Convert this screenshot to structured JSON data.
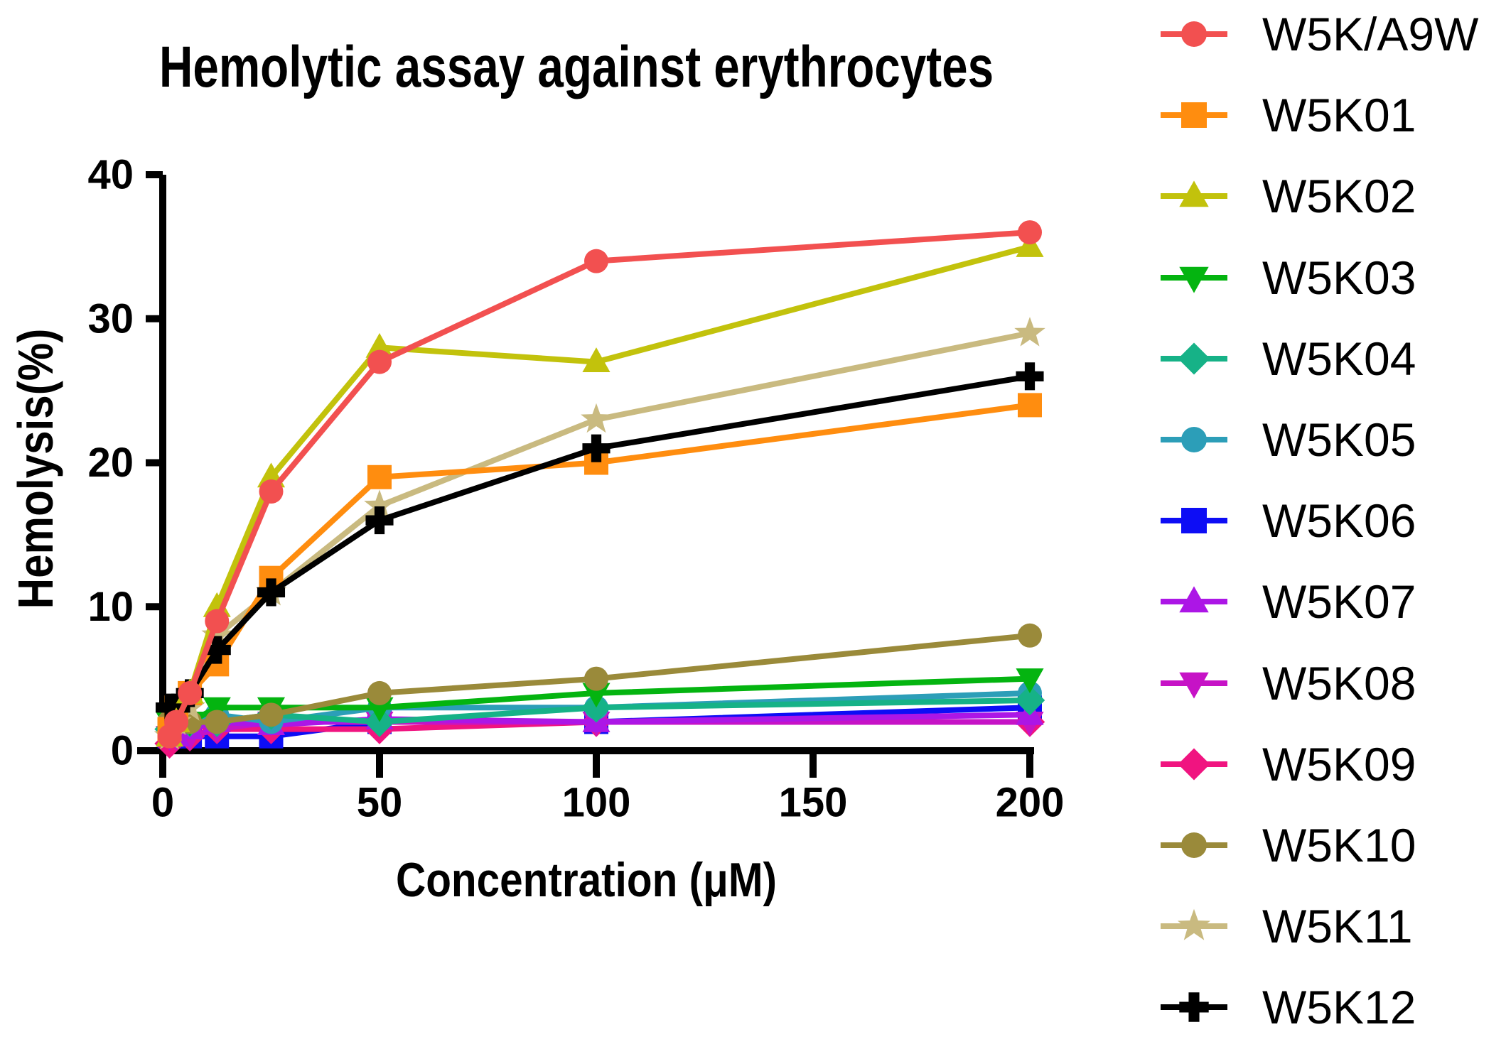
{
  "chart_data": {
    "type": "line",
    "title": "Hemolytic assay against erythrocytes",
    "xlabel": "Concentration (μM)",
    "ylabel": "Hemolysis(%)",
    "xlim": [
      0,
      200
    ],
    "ylim": [
      0,
      40
    ],
    "grid": false,
    "legend_position": "right",
    "x_ticks": [
      0,
      50,
      100,
      150,
      200
    ],
    "x_tick_labels": [
      "0",
      "50",
      "100",
      "150",
      "200"
    ],
    "y_ticks": [
      0,
      10,
      20,
      30,
      40
    ],
    "y_tick_labels": [
      "0",
      "10",
      "20",
      "30",
      "40"
    ],
    "x": [
      1.56,
      3.12,
      6.25,
      12.5,
      25,
      50,
      100,
      200
    ],
    "series": [
      {
        "name": "W5K/A9W",
        "color": "#F25050",
        "marker": "circle",
        "values": [
          1,
          2,
          4,
          9,
          18,
          27,
          34,
          36
        ]
      },
      {
        "name": "W5K01",
        "color": "#FF8D0F",
        "marker": "square",
        "values": [
          1.5,
          3,
          4,
          6,
          12,
          19,
          20,
          24
        ]
      },
      {
        "name": "W5K02",
        "color": "#C2C20C",
        "marker": "triangle-up",
        "values": [
          1,
          2,
          4,
          10,
          19,
          28,
          27,
          35
        ]
      },
      {
        "name": "W5K03",
        "color": "#04B410",
        "marker": "triangle-down",
        "values": [
          2,
          2,
          2,
          3,
          3,
          3,
          4,
          5
        ]
      },
      {
        "name": "W5K04",
        "color": "#16B287",
        "marker": "diamond",
        "values": [
          1.5,
          2,
          2,
          2,
          2.5,
          2,
          3,
          3.5
        ]
      },
      {
        "name": "W5K05",
        "color": "#2C9EB8",
        "marker": "circle",
        "values": [
          1.5,
          2,
          2,
          2.5,
          2,
          3,
          3,
          4
        ]
      },
      {
        "name": "W5K06",
        "color": "#0D0DF5",
        "marker": "square",
        "values": [
          1,
          1,
          1,
          1,
          1,
          2,
          2,
          3
        ]
      },
      {
        "name": "W5K07",
        "color": "#AC16E6",
        "marker": "triangle-up",
        "values": [
          1,
          1,
          1.5,
          2,
          1.8,
          2.2,
          2,
          2.5
        ]
      },
      {
        "name": "W5K08",
        "color": "#C613C6",
        "marker": "triangle-down",
        "values": [
          1,
          1,
          1,
          1.5,
          2,
          2,
          2,
          2
        ]
      },
      {
        "name": "W5K09",
        "color": "#F01480",
        "marker": "diamond",
        "values": [
          0.5,
          1,
          1,
          1.5,
          1.5,
          1.5,
          2,
          2
        ]
      },
      {
        "name": "W5K10",
        "color": "#9A8A3A",
        "marker": "circle",
        "values": [
          2,
          2,
          2,
          2,
          2.5,
          4,
          5,
          8
        ]
      },
      {
        "name": "W5K11",
        "color": "#C9BA80",
        "marker": "star",
        "values": [
          1,
          2,
          3,
          8,
          11,
          17,
          23,
          29
        ]
      },
      {
        "name": "W5K12",
        "color": "#000000",
        "marker": "plus",
        "values": [
          3,
          3,
          4,
          7,
          11,
          16,
          21,
          26
        ]
      }
    ]
  }
}
